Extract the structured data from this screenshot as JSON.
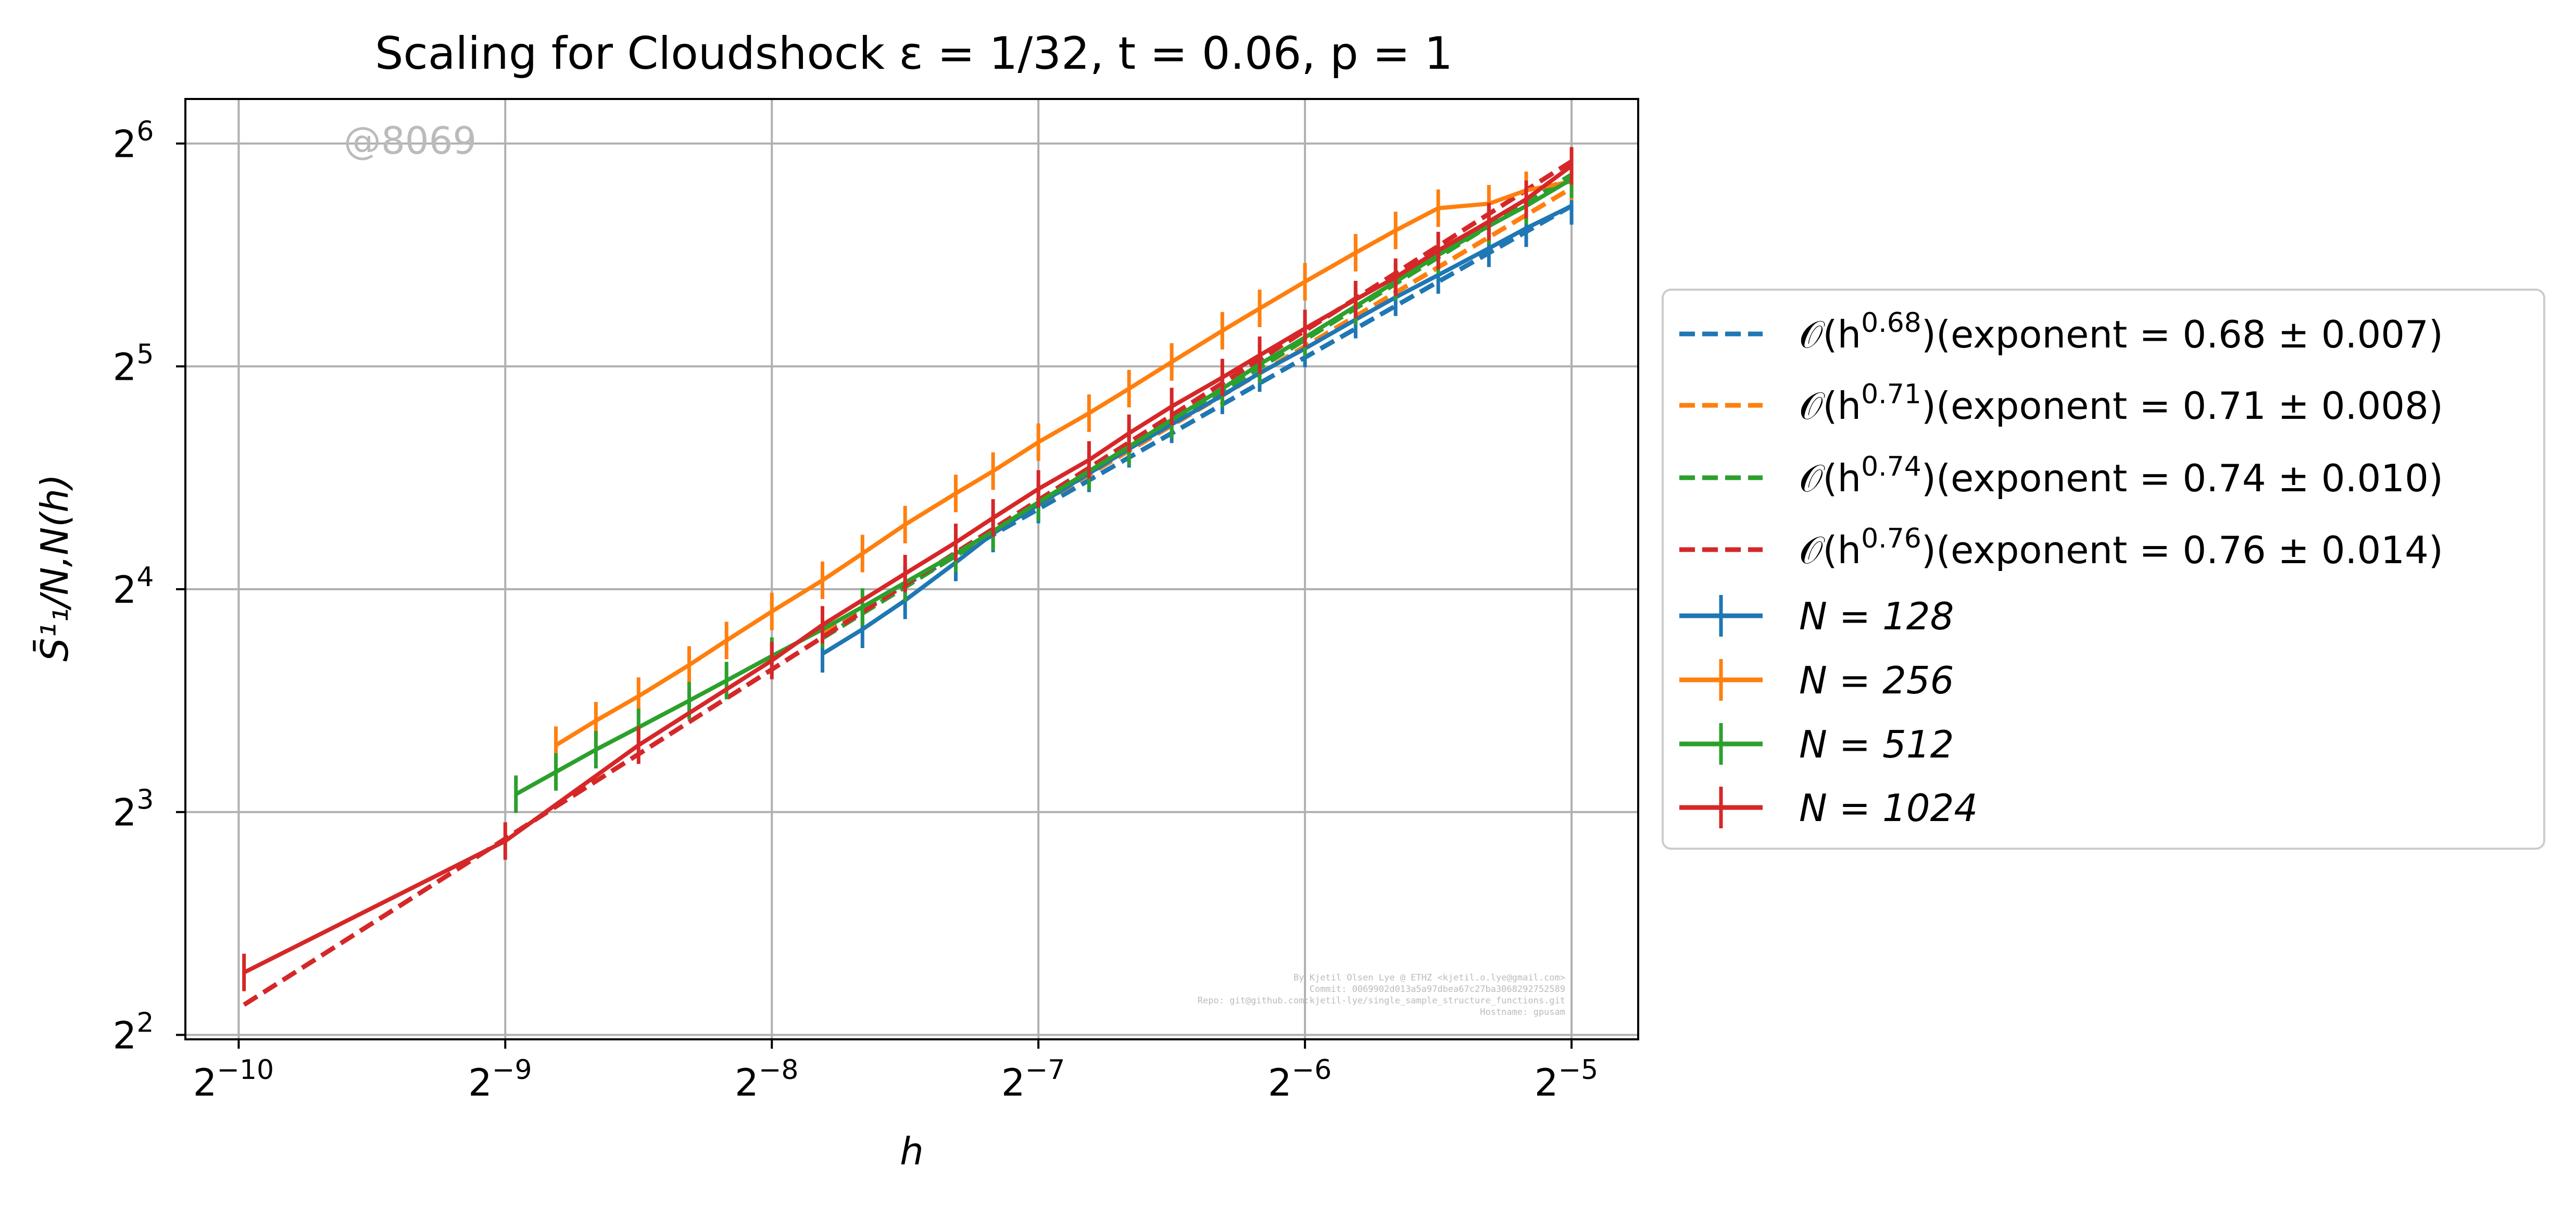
{
  "title": "Scaling for Cloudshock ε = 1/32, t = 0.06, p = 1",
  "watermark": "@8069",
  "credits": [
    "By Kjetil Olsen Lye @ ETHZ <kjetil.o.lye@gmail.com>",
    "Commit: 0069902d013a5a97dbea67c27ba3068292752589",
    "Repo: git@github.com:kjetil-lye/single_sample_structure_functions.git",
    "Hostname: gpusam"
  ],
  "chart_data": {
    "type": "line",
    "title": "Scaling for Cloudshock ε = 1/32, t = 0.06, p = 1",
    "xlabel": "h",
    "ylabel": "S̄¹₁/N,N(h)",
    "xscale": "log2",
    "yscale": "log2",
    "xlim_log2": [
      -10.2,
      -4.75
    ],
    "ylim_log2": [
      1.98,
      6.2
    ],
    "x_ticks": [
      {
        "base": "2",
        "exp": "−10",
        "log2": -10
      },
      {
        "base": "2",
        "exp": "−9",
        "log2": -9
      },
      {
        "base": "2",
        "exp": "−8",
        "log2": -8
      },
      {
        "base": "2",
        "exp": "−7",
        "log2": -7
      },
      {
        "base": "2",
        "exp": "−6",
        "log2": -6
      },
      {
        "base": "2",
        "exp": "−5",
        "log2": -5
      }
    ],
    "y_ticks": [
      {
        "base": "2",
        "exp": "2",
        "log2": 2
      },
      {
        "base": "2",
        "exp": "3",
        "log2": 3
      },
      {
        "base": "2",
        "exp": "4",
        "log2": 4
      },
      {
        "base": "2",
        "exp": "5",
        "log2": 5
      },
      {
        "base": "2",
        "exp": "6",
        "log2": 6
      }
    ],
    "grid": true,
    "legend_position": "outside right",
    "series": [
      {
        "name": "N = 128",
        "color": "#1f77b4",
        "points_log2": [
          [
            -7.81,
            3.71
          ],
          [
            -7.66,
            3.82
          ],
          [
            -7.5,
            3.95
          ],
          [
            -7.31,
            4.12
          ],
          [
            -7.17,
            4.25
          ],
          [
            -7,
            4.38
          ],
          [
            -6.81,
            4.52
          ],
          [
            -6.66,
            4.63
          ],
          [
            -6.5,
            4.74
          ],
          [
            -6.31,
            4.87
          ],
          [
            -6.17,
            4.97
          ],
          [
            -6,
            5.08
          ],
          [
            -5.81,
            5.21
          ],
          [
            -5.66,
            5.31
          ],
          [
            -5.5,
            5.41
          ],
          [
            -5.31,
            5.53
          ],
          [
            -5.17,
            5.62
          ],
          [
            -5,
            5.72
          ]
        ],
        "fit": {
          "label_prefix": "𝒪(h",
          "label_exp": "0.68",
          "label_suffix": ")(exponent = 0.68 ± 0.007)",
          "exponent": 0.68,
          "h_start_log2": -7.81,
          "h_end_log2": -5,
          "logy_end": 5.72
        }
      },
      {
        "name": "N = 256",
        "color": "#ff7f0e",
        "points_log2": [
          [
            -8.81,
            3.3
          ],
          [
            -8.66,
            3.41
          ],
          [
            -8.5,
            3.52
          ],
          [
            -8.31,
            3.66
          ],
          [
            -8.17,
            3.77
          ],
          [
            -8,
            3.9
          ],
          [
            -7.81,
            4.04
          ],
          [
            -7.66,
            4.16
          ],
          [
            -7.5,
            4.29
          ],
          [
            -7.31,
            4.43
          ],
          [
            -7.17,
            4.53
          ],
          [
            -7,
            4.66
          ],
          [
            -6.81,
            4.79
          ],
          [
            -6.66,
            4.9
          ],
          [
            -6.5,
            5.02
          ],
          [
            -6.31,
            5.16
          ],
          [
            -6.17,
            5.26
          ],
          [
            -6,
            5.38
          ],
          [
            -5.81,
            5.51
          ],
          [
            -5.66,
            5.61
          ],
          [
            -5.5,
            5.71
          ],
          [
            -5.31,
            5.73
          ],
          [
            -5.17,
            5.79
          ],
          [
            -5,
            5.83
          ]
        ],
        "fit": {
          "label_prefix": "𝒪(h",
          "label_exp": "0.71",
          "label_suffix": ")(exponent = 0.71 ± 0.008)",
          "exponent": 0.71,
          "h_start_log2": -7.81,
          "h_end_log2": -5,
          "logy_end": 5.8
        }
      },
      {
        "name": "N = 512",
        "color": "#2ca02c",
        "points_log2": [
          [
            -8.96,
            3.08
          ],
          [
            -8.81,
            3.18
          ],
          [
            -8.66,
            3.28
          ],
          [
            -8.5,
            3.38
          ],
          [
            -8.31,
            3.5
          ],
          [
            -8.17,
            3.59
          ],
          [
            -8,
            3.7
          ],
          [
            -7.81,
            3.82
          ],
          [
            -7.66,
            3.92
          ],
          [
            -7.5,
            4.03
          ],
          [
            -7.31,
            4.16
          ],
          [
            -7.17,
            4.26
          ],
          [
            -7,
            4.39
          ],
          [
            -6.81,
            4.53
          ],
          [
            -6.66,
            4.64
          ],
          [
            -6.5,
            4.76
          ],
          [
            -6.31,
            4.9
          ],
          [
            -6.17,
            5.01
          ],
          [
            -6,
            5.13
          ],
          [
            -5.81,
            5.27
          ],
          [
            -5.66,
            5.38
          ],
          [
            -5.5,
            5.5
          ],
          [
            -5.31,
            5.63
          ],
          [
            -5.17,
            5.72
          ],
          [
            -5,
            5.84
          ]
        ],
        "fit": {
          "label_prefix": "𝒪(h",
          "label_exp": "0.74",
          "label_suffix": ")(exponent = 0.74 ± 0.010)",
          "exponent": 0.74,
          "h_start_log2": -7.81,
          "h_end_log2": -5,
          "logy_end": 5.86
        }
      },
      {
        "name": "N = 1024",
        "color": "#d62728",
        "points_log2": [
          [
            -9.98,
            2.28
          ],
          [
            -9,
            2.87
          ],
          [
            -8.5,
            3.3
          ],
          [
            -8,
            3.68
          ],
          [
            -7.81,
            3.84
          ],
          [
            -7.5,
            4.07
          ],
          [
            -7.31,
            4.21
          ],
          [
            -7.17,
            4.32
          ],
          [
            -7,
            4.45
          ],
          [
            -6.81,
            4.58
          ],
          [
            -6.66,
            4.7
          ],
          [
            -6.5,
            4.82
          ],
          [
            -6.31,
            4.95
          ],
          [
            -6.17,
            5.05
          ],
          [
            -6,
            5.17
          ],
          [
            -5.81,
            5.3
          ],
          [
            -5.66,
            5.4
          ],
          [
            -5.5,
            5.52
          ],
          [
            -5.31,
            5.65
          ],
          [
            -5.17,
            5.75
          ],
          [
            -5,
            5.9
          ]
        ],
        "fit": {
          "label_prefix": "𝒪(h",
          "label_exp": "0.76",
          "label_suffix": ")(exponent = 0.76 ± 0.014)",
          "exponent": 0.76,
          "h_start_log2": -9.98,
          "h_end_log2": -5,
          "logy_end": 5.92
        }
      }
    ]
  }
}
